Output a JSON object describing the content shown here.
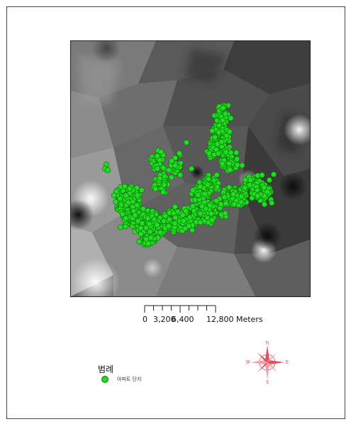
{
  "scale_bar": {
    "ticks": [
      "0",
      "3,200",
      "6,400",
      "12,800 Meters"
    ],
    "unit": "Meters"
  },
  "legend": {
    "title": "범례",
    "items": [
      {
        "label": "아파트 단지",
        "symbol": "green-circle-icon",
        "color": "#22dd22"
      }
    ]
  },
  "north_arrow": {
    "labels": {
      "n": "N",
      "s": "S",
      "e": "E",
      "w": "W"
    },
    "color": "#e05060"
  },
  "map": {
    "background": "grayscale-interpolated-surface",
    "point_color": "#22dd22",
    "point_outline": "#0a7a0a"
  }
}
